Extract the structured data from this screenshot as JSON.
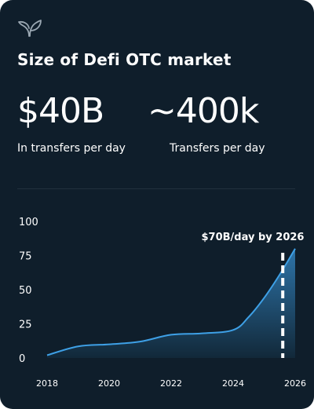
{
  "header": {
    "logo_icon": "sprout-icon",
    "title": "Size of Defi OTC market"
  },
  "stats": [
    {
      "value": "$40B",
      "label": "In transfers per day"
    },
    {
      "value": "~400k",
      "label": "Transfers per day"
    }
  ],
  "colors": {
    "background": "#0f1e2b",
    "line": "#3ea0e6",
    "area_top": "#2f79b0",
    "area_bottom": "#12293a"
  },
  "chart_data": {
    "type": "area",
    "xlim": [
      2018,
      2026
    ],
    "ylim": [
      0,
      100
    ],
    "x_ticks": [
      "2018",
      "2020",
      "2022",
      "2024",
      "2026"
    ],
    "y_ticks": [
      "0",
      "25",
      "50",
      "75",
      "100"
    ],
    "grid": false,
    "series": [
      {
        "x": [
          2018,
          2019,
          2020,
          2021,
          2022,
          2023,
          2024,
          2024.5,
          2025,
          2025.5,
          2026
        ],
        "values": [
          2,
          8.5,
          10,
          12,
          17,
          18,
          20.5,
          30,
          44,
          61,
          80
        ]
      }
    ],
    "annotation": {
      "text": "$70B/day by 2026",
      "x": 2025.6
    }
  }
}
